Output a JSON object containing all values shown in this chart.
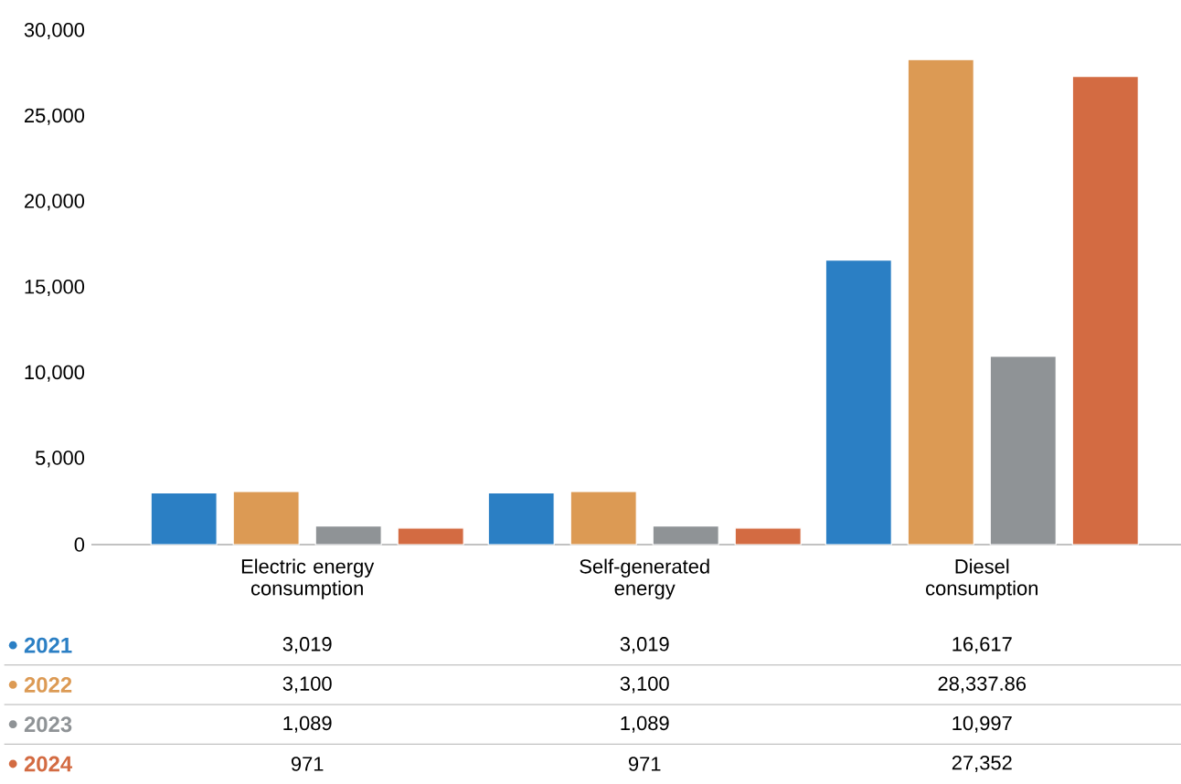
{
  "chart_data": {
    "type": "bar",
    "categories": [
      "Electric energy consumption",
      "Self-generated energy",
      "Diesel consumption"
    ],
    "series": [
      {
        "name": "2021",
        "color": "#2b7fc4",
        "values": [
          3019,
          3019,
          16617
        ],
        "value_labels": [
          "3,019",
          "3,019",
          "16,617"
        ]
      },
      {
        "name": "2022",
        "color": "#dc9a54",
        "values": [
          3100,
          3100,
          28337.86
        ],
        "value_labels": [
          "3,100",
          "3,100",
          "28,337.86"
        ]
      },
      {
        "name": "2023",
        "color": "#8f9396",
        "values": [
          1089,
          1089,
          10997
        ],
        "value_labels": [
          "1,089",
          "1,089",
          "10,997"
        ]
      },
      {
        "name": "2024",
        "color": "#d36b42",
        "values": [
          971,
          971,
          27352
        ],
        "value_labels": [
          "971",
          "971",
          "27,352"
        ]
      }
    ],
    "ylim": [
      0,
      30000
    ],
    "yticks": [
      0,
      {
        "value": 5000,
        "label": "5,000"
      },
      {
        "value": 10000,
        "label": "10,000"
      },
      {
        "value": 15000,
        "label": "15,000"
      },
      {
        "value": 20000,
        "label": "20,000"
      },
      {
        "value": 25000,
        "label": "25,000"
      },
      {
        "value": 30000,
        "label": "30,000"
      }
    ],
    "legend": "bottom"
  }
}
